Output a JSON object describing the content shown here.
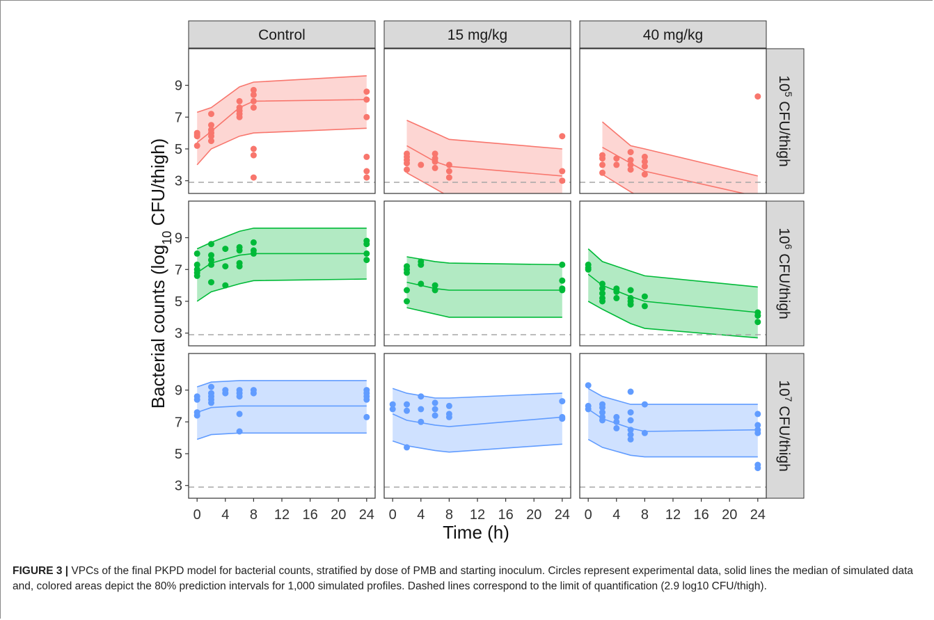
{
  "figure": {
    "caption_label": "FIGURE 3",
    "caption_text": "VPCs of the final PKPD model for bacterial counts, stratified by dose of PMB and starting inoculum. Circles represent experimental data, solid lines the median of simulated data and, colored areas depict the 80% prediction intervals for 1,000 simulated profiles. Dashed lines correspond to the limit of quantification (2.9 log10 CFU/thigh)."
  },
  "chart_data": {
    "type": "scatter",
    "xlabel": "Time (h)",
    "ylabel": {
      "prefix": "Bacterial counts (log",
      "sub": "10",
      "suffix": " CFU/thigh)"
    },
    "x_ticks": [
      0,
      4,
      8,
      12,
      16,
      20,
      24
    ],
    "y_ticks": [
      3,
      5,
      7,
      9
    ],
    "xlim": [
      -1.2,
      25.2
    ],
    "ylim": [
      2.2,
      11.3
    ],
    "loq": 2.9,
    "columns": [
      "Control",
      "15 mg/kg",
      "40 mg/kg"
    ],
    "rows": [
      {
        "base": "10",
        "exp": "5",
        "rest": " CFU/thigh"
      },
      {
        "base": "10",
        "exp": "6",
        "rest": " CFU/thigh"
      },
      {
        "base": "10",
        "exp": "7",
        "rest": " CFU/thigh"
      }
    ],
    "colors": {
      "row0": "#F8766D",
      "row1": "#00BA38",
      "row2": "#619CFF",
      "loq_line": "#a6a6a6",
      "strip_fill": "#d9d9d9"
    },
    "panels": [
      [
        {
          "x": [
            0,
            2,
            6,
            8,
            24
          ],
          "median": [
            5.4,
            6.1,
            7.6,
            8.0,
            8.1
          ],
          "lower": [
            4.0,
            5.0,
            5.8,
            6.0,
            6.3
          ],
          "upper": [
            7.3,
            7.6,
            8.9,
            9.2,
            9.6
          ],
          "points": [
            [
              0,
              5.9
            ],
            [
              0,
              6.0
            ],
            [
              0,
              5.8
            ],
            [
              0,
              5.2
            ],
            [
              2,
              7.2
            ],
            [
              2,
              6.5
            ],
            [
              2,
              6.2
            ],
            [
              2,
              6.0
            ],
            [
              2,
              5.8
            ],
            [
              2,
              5.5
            ],
            [
              6,
              8.0
            ],
            [
              6,
              7.6
            ],
            [
              6,
              7.4
            ],
            [
              6,
              7.2
            ],
            [
              6,
              7.0
            ],
            [
              8,
              8.7
            ],
            [
              8,
              8.4
            ],
            [
              8,
              8.0
            ],
            [
              8,
              7.6
            ],
            [
              8,
              5.0
            ],
            [
              8,
              4.6
            ],
            [
              8,
              3.2
            ],
            [
              24,
              8.6
            ],
            [
              24,
              8.1
            ],
            [
              24,
              7.0
            ],
            [
              24,
              4.5
            ],
            [
              24,
              3.6
            ],
            [
              24,
              3.2
            ]
          ]
        },
        {
          "x": [
            2,
            6,
            8,
            24
          ],
          "median": [
            5.2,
            4.2,
            3.9,
            3.3
          ],
          "lower": [
            3.5,
            2.5,
            2.0,
            1.5
          ],
          "upper": [
            6.8,
            6.0,
            5.6,
            5.0
          ],
          "points": [
            [
              2,
              4.7
            ],
            [
              2,
              4.5
            ],
            [
              2,
              4.3
            ],
            [
              2,
              4.1
            ],
            [
              2,
              3.7
            ],
            [
              4,
              4.0
            ],
            [
              6,
              4.7
            ],
            [
              6,
              4.4
            ],
            [
              6,
              4.2
            ],
            [
              6,
              3.8
            ],
            [
              8,
              4.0
            ],
            [
              8,
              3.6
            ],
            [
              8,
              3.2
            ],
            [
              24,
              5.8
            ],
            [
              24,
              3.6
            ],
            [
              24,
              3.0
            ]
          ]
        },
        {
          "x": [
            2,
            6,
            8,
            24
          ],
          "median": [
            5.1,
            4.1,
            3.6,
            2.0
          ],
          "lower": [
            3.4,
            2.3,
            1.8,
            1.0
          ],
          "upper": [
            6.7,
            5.2,
            5.0,
            3.3
          ],
          "points": [
            [
              2,
              4.6
            ],
            [
              2,
              4.4
            ],
            [
              2,
              4.0
            ],
            [
              2,
              3.5
            ],
            [
              4,
              4.4
            ],
            [
              4,
              4.0
            ],
            [
              6,
              4.8
            ],
            [
              6,
              4.3
            ],
            [
              6,
              4.0
            ],
            [
              6,
              3.7
            ],
            [
              8,
              4.5
            ],
            [
              8,
              4.2
            ],
            [
              8,
              3.9
            ],
            [
              8,
              3.4
            ],
            [
              24,
              8.3
            ]
          ]
        }
      ],
      [
        {
          "x": [
            0,
            2,
            6,
            8,
            24
          ],
          "median": [
            6.8,
            7.4,
            7.9,
            8.0,
            8.0
          ],
          "lower": [
            5.0,
            5.6,
            6.1,
            6.3,
            6.4
          ],
          "upper": [
            8.3,
            8.7,
            9.4,
            9.6,
            9.6
          ],
          "points": [
            [
              0,
              8.0
            ],
            [
              0,
              7.3
            ],
            [
              0,
              7.0
            ],
            [
              0,
              6.8
            ],
            [
              0,
              6.6
            ],
            [
              2,
              8.6
            ],
            [
              2,
              7.9
            ],
            [
              2,
              7.6
            ],
            [
              2,
              7.3
            ],
            [
              2,
              6.2
            ],
            [
              4,
              8.3
            ],
            [
              4,
              7.2
            ],
            [
              4,
              6.0
            ],
            [
              6,
              8.4
            ],
            [
              6,
              8.2
            ],
            [
              6,
              7.4
            ],
            [
              6,
              7.2
            ],
            [
              8,
              8.7
            ],
            [
              8,
              8.2
            ],
            [
              8,
              8.0
            ],
            [
              24,
              8.8
            ],
            [
              24,
              8.6
            ],
            [
              24,
              8.0
            ],
            [
              24,
              7.6
            ]
          ]
        },
        {
          "x": [
            2,
            6,
            8,
            24
          ],
          "median": [
            6.2,
            5.8,
            5.7,
            5.7
          ],
          "lower": [
            4.6,
            4.2,
            4.0,
            4.0
          ],
          "upper": [
            7.8,
            7.5,
            7.4,
            7.3
          ],
          "points": [
            [
              2,
              7.2
            ],
            [
              2,
              7.0
            ],
            [
              2,
              6.8
            ],
            [
              2,
              5.7
            ],
            [
              2,
              5.0
            ],
            [
              4,
              7.5
            ],
            [
              4,
              7.3
            ],
            [
              4,
              6.1
            ],
            [
              6,
              6.0
            ],
            [
              6,
              5.7
            ],
            [
              24,
              7.3
            ],
            [
              24,
              6.3
            ],
            [
              24,
              5.8
            ],
            [
              24,
              5.7
            ]
          ]
        },
        {
          "x": [
            0,
            2,
            6,
            8,
            24
          ],
          "median": [
            6.7,
            6.0,
            5.3,
            5.0,
            4.3
          ],
          "lower": [
            5.0,
            4.5,
            3.6,
            3.3,
            2.7
          ],
          "upper": [
            8.3,
            7.5,
            6.9,
            6.6,
            5.9
          ],
          "points": [
            [
              0,
              7.3
            ],
            [
              0,
              7.1
            ],
            [
              0,
              7.0
            ],
            [
              2,
              6.1
            ],
            [
              2,
              5.8
            ],
            [
              2,
              5.5
            ],
            [
              2,
              5.2
            ],
            [
              2,
              5.0
            ],
            [
              4,
              5.8
            ],
            [
              4,
              5.6
            ],
            [
              4,
              5.2
            ],
            [
              6,
              5.7
            ],
            [
              6,
              5.2
            ],
            [
              6,
              5.0
            ],
            [
              6,
              4.8
            ],
            [
              8,
              5.3
            ],
            [
              8,
              4.7
            ],
            [
              24,
              4.3
            ],
            [
              24,
              4.1
            ],
            [
              24,
              3.7
            ]
          ]
        }
      ],
      [
        {
          "x": [
            0,
            2,
            6,
            8,
            24
          ],
          "median": [
            7.6,
            7.9,
            8.0,
            8.0,
            8.0
          ],
          "lower": [
            5.9,
            6.2,
            6.3,
            6.3,
            6.3
          ],
          "upper": [
            9.2,
            9.5,
            9.6,
            9.6,
            9.6
          ],
          "points": [
            [
              0,
              8.6
            ],
            [
              0,
              8.4
            ],
            [
              0,
              7.6
            ],
            [
              0,
              7.4
            ],
            [
              2,
              9.2
            ],
            [
              2,
              8.8
            ],
            [
              2,
              8.6
            ],
            [
              2,
              8.4
            ],
            [
              2,
              8.2
            ],
            [
              4,
              9.0
            ],
            [
              4,
              8.8
            ],
            [
              6,
              9.0
            ],
            [
              6,
              8.8
            ],
            [
              6,
              8.6
            ],
            [
              6,
              7.5
            ],
            [
              6,
              6.4
            ],
            [
              8,
              9.0
            ],
            [
              8,
              8.8
            ],
            [
              24,
              9.0
            ],
            [
              24,
              8.8
            ],
            [
              24,
              8.6
            ],
            [
              24,
              8.4
            ],
            [
              24,
              7.3
            ]
          ]
        },
        {
          "x": [
            0,
            2,
            6,
            8,
            24
          ],
          "median": [
            7.5,
            7.1,
            6.8,
            6.7,
            7.3
          ],
          "lower": [
            5.8,
            5.5,
            5.2,
            5.1,
            5.6
          ],
          "upper": [
            9.1,
            8.8,
            8.5,
            8.5,
            8.8
          ],
          "points": [
            [
              0,
              8.1
            ],
            [
              0,
              7.8
            ],
            [
              2,
              8.1
            ],
            [
              2,
              7.7
            ],
            [
              2,
              5.4
            ],
            [
              4,
              8.6
            ],
            [
              4,
              7.8
            ],
            [
              4,
              7.0
            ],
            [
              6,
              8.2
            ],
            [
              6,
              7.8
            ],
            [
              6,
              7.4
            ],
            [
              8,
              8.0
            ],
            [
              8,
              7.5
            ],
            [
              8,
              7.3
            ],
            [
              24,
              8.3
            ],
            [
              24,
              7.3
            ],
            [
              24,
              7.2
            ]
          ]
        },
        {
          "x": [
            0,
            2,
            6,
            8,
            24
          ],
          "median": [
            7.8,
            7.2,
            6.6,
            6.4,
            6.5
          ],
          "lower": [
            5.9,
            5.4,
            4.9,
            4.8,
            4.8
          ],
          "upper": [
            9.1,
            8.6,
            8.1,
            8.1,
            8.1
          ],
          "points": [
            [
              0,
              9.3
            ],
            [
              0,
              8.0
            ],
            [
              0,
              7.8
            ],
            [
              2,
              8.1
            ],
            [
              2,
              7.9
            ],
            [
              2,
              7.6
            ],
            [
              2,
              7.3
            ],
            [
              2,
              7.1
            ],
            [
              4,
              7.3
            ],
            [
              4,
              7.0
            ],
            [
              4,
              6.6
            ],
            [
              6,
              8.9
            ],
            [
              6,
              7.6
            ],
            [
              6,
              7.1
            ],
            [
              6,
              6.5
            ],
            [
              6,
              6.2
            ],
            [
              6,
              5.9
            ],
            [
              8,
              8.1
            ],
            [
              8,
              6.3
            ],
            [
              24,
              7.5
            ],
            [
              24,
              6.8
            ],
            [
              24,
              6.5
            ],
            [
              24,
              6.3
            ],
            [
              24,
              4.3
            ],
            [
              24,
              4.1
            ]
          ]
        }
      ]
    ]
  }
}
